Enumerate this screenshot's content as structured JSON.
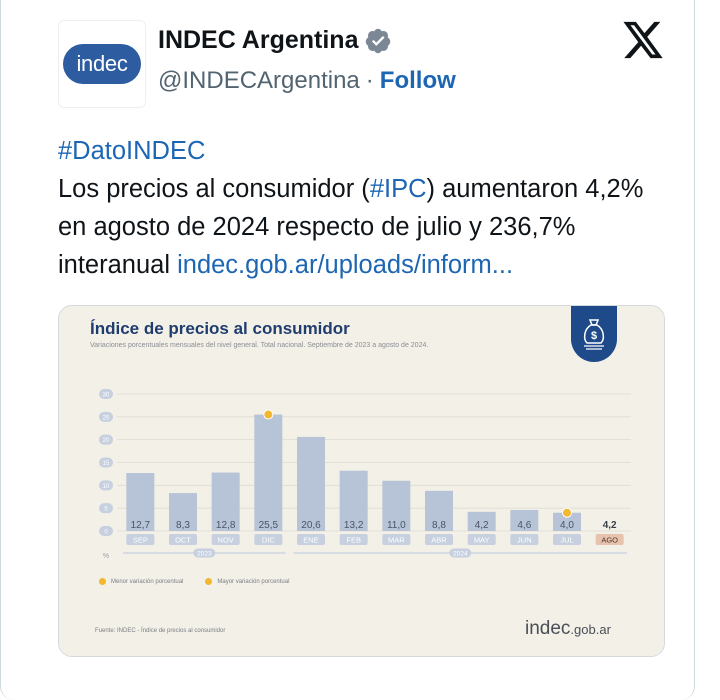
{
  "account": {
    "avatar_text": "indec",
    "name": "INDEC Argentina",
    "handle": "@INDECArgentina",
    "separator": "·",
    "follow_label": "Follow"
  },
  "post": {
    "hashtag_line": "#DatoINDEC",
    "text_part1": "Los precios al consumidor (",
    "hashtag_ipc": "#IPC",
    "text_part2": ") aumentaron 4,2% en agosto de 2024 respecto de julio y 236,7% interanual ",
    "link_text": "indec.gob.ar/uploads/inform..."
  },
  "infographic": {
    "title": "Índice de precios al consumidor",
    "subtitle": "Variaciones porcentuales mensuales del nivel general. Total nacional. Septiembre de 2023 a agosto de 2024.",
    "legend": {
      "min": "Menor variación porcentual",
      "max": "Mayor variación porcentual"
    },
    "source": "Fuente: INDEC - Índice de precios al consumidor",
    "logo_main": "indec",
    "logo_suffix": ".gob.ar",
    "unit_label": "%"
  },
  "chart_data": {
    "type": "bar",
    "title": "Índice de precios al consumidor",
    "subtitle": "Variaciones porcentuales mensuales del nivel general. Total nacional. Septiembre de 2023 a agosto de 2024.",
    "categories": [
      "SEP",
      "OCT",
      "NOV",
      "DIC",
      "ENE",
      "FEB",
      "MAR",
      "ABR",
      "MAY",
      "JUN",
      "JUL",
      "AGO"
    ],
    "values": [
      12.7,
      8.3,
      12.8,
      25.5,
      20.6,
      13.2,
      11.0,
      8.8,
      4.2,
      4.6,
      4.0,
      4.2
    ],
    "value_labels": [
      "12,7",
      "8,3",
      "12,8",
      "25,5",
      "20,6",
      "13,2",
      "11,0",
      "8,8",
      "4,2",
      "4,6",
      "4,0",
      "4,2"
    ],
    "yticks": [
      0,
      5,
      10,
      15,
      20,
      25,
      30
    ],
    "ylim": [
      0,
      30
    ],
    "year_groups": [
      {
        "label": "2023",
        "from": 0,
        "to": 3
      },
      {
        "label": "2024",
        "from": 4,
        "to": 11
      }
    ],
    "highlight_max_index": 3,
    "highlight_min_index": 10,
    "last_highlight_index": 11,
    "colors": {
      "bar": "#b7c3d6",
      "last_bar": "#e8c9b8",
      "month_pill": "#c6d0df",
      "last_month_pill": "#e7c2ad",
      "marker": "#f0b72f",
      "title": "#1f3d6e"
    }
  }
}
